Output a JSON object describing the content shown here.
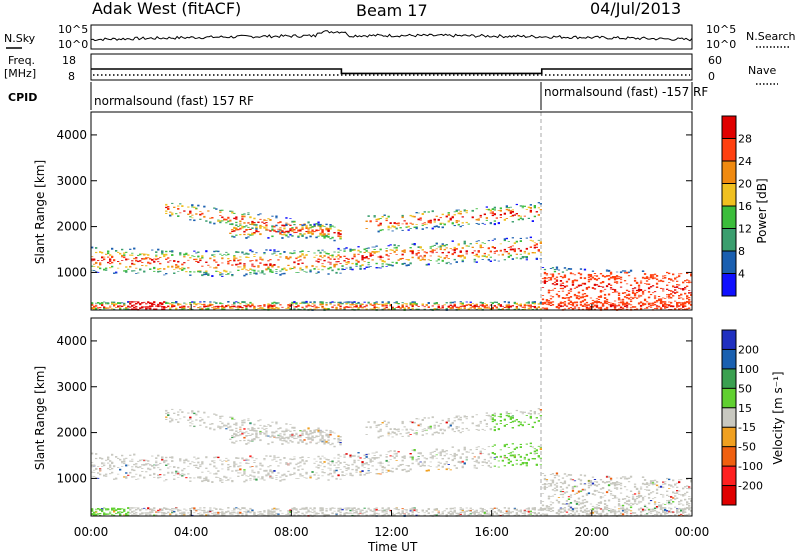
{
  "header": {
    "station": "Adak West (fitACF)",
    "beam": "Beam 17",
    "date": "04/Jul/2013"
  },
  "noise_panel": {
    "left_label": "N.Sky",
    "right_label": "N.Search",
    "left_ticks": [
      "10^5",
      "10^0"
    ],
    "right_ticks": [
      "10^5",
      "10^0"
    ]
  },
  "freq_panel": {
    "left_label_line1": "Freq.",
    "left_label_line2": "[MHz]",
    "right_label": "Nave",
    "left_ticks": [
      "18",
      "8"
    ],
    "right_ticks": [
      "60",
      "0"
    ]
  },
  "cpid_panel": {
    "label": "CPID",
    "segments": [
      "normalsound (fast) 157 RF",
      "normalsound (fast) -157 RF"
    ]
  },
  "power_panel": {
    "ylabel": "Slant Range [km]",
    "yticks": [
      "1000",
      "2000",
      "3000",
      "4000"
    ],
    "colorbar_label": "Power [dB]",
    "colorbar_ticks": [
      "4",
      "8",
      "12",
      "16",
      "20",
      "24",
      "28"
    ],
    "colors": [
      "#1010ff",
      "#1a5fb0",
      "#3a9e6e",
      "#3bbd3b",
      "#f0c020",
      "#f08a10",
      "#ff4010",
      "#e00000"
    ]
  },
  "velocity_panel": {
    "ylabel": "Slant Range [km]",
    "yticks": [
      "1000",
      "2000",
      "3000",
      "4000"
    ],
    "colorbar_label": "Velocity [m s⁻¹]",
    "colorbar_ticks": [
      "200",
      "100",
      "50",
      "15",
      "-15",
      "-50",
      "-100",
      "-200"
    ],
    "colors": [
      "#2030c0",
      "#1a60b0",
      "#3aa050",
      "#60d030",
      "#c8c8c0",
      "#f0a020",
      "#f06010",
      "#ff2020",
      "#e00000"
    ]
  },
  "x_axis": {
    "label": "Time UT",
    "ticks": [
      "00:00",
      "04:00",
      "08:00",
      "12:00",
      "16:00",
      "20:00",
      "00:00"
    ]
  },
  "chart_data": {
    "type": "heatmap",
    "title": "Adak West (fitACF) Beam 17 04/Jul/2013",
    "xlabel": "Time UT",
    "ylabel": "Slant Range [km]",
    "x_range_hours": [
      0,
      24
    ],
    "y_range_km": [
      180,
      4500
    ],
    "frequency_mhz_by_time": [
      {
        "start": "00:00",
        "end": "10:00",
        "value": 13
      },
      {
        "start": "10:00",
        "end": "18:00",
        "value": 11
      },
      {
        "start": "18:00",
        "end": "24:00",
        "value": 13
      }
    ],
    "power_scale_db": [
      0,
      30
    ],
    "velocity_scale_ms": [
      -200,
      200
    ]
  }
}
